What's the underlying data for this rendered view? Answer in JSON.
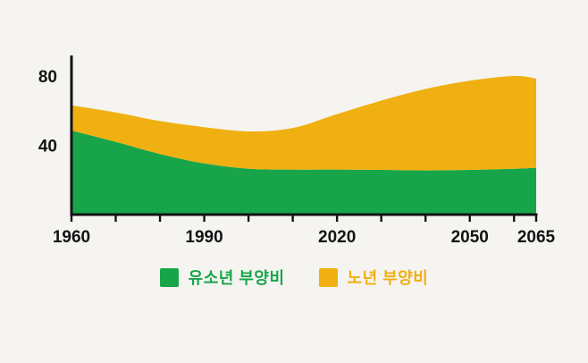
{
  "figure": {
    "background": "#f5f4f1"
  },
  "chart_data": {
    "type": "area",
    "stacked": true,
    "title": "",
    "xlabel": "",
    "ylabel": "",
    "x": [
      1960,
      1970,
      1980,
      1990,
      2000,
      2010,
      2020,
      2030,
      2040,
      2050,
      2060,
      2065
    ],
    "series": [
      {
        "name": "유소년 부양비",
        "color": "#18a54a",
        "values": [
          48.5,
          42,
          35,
          29.5,
          26.5,
          26,
          26,
          25.8,
          25.5,
          25.8,
          26.5,
          27
        ]
      },
      {
        "name": "노년 부양비",
        "color": "#f0b012",
        "values": [
          14.5,
          17,
          19,
          21,
          21.5,
          24,
          32,
          40,
          47,
          51.5,
          53.5,
          51.5
        ]
      }
    ],
    "xticks": [
      1960,
      1970,
      1980,
      1990,
      2000,
      2010,
      2020,
      2030,
      2040,
      2050,
      2060,
      2065
    ],
    "xtick_labels": [
      1960,
      1990,
      2020,
      2050,
      2065
    ],
    "yticks": [
      40,
      80
    ],
    "xlim": [
      1960,
      2065
    ],
    "ylim": [
      0,
      94
    ],
    "grid": false,
    "axis_color": "#131313",
    "legend_position": "bottom"
  },
  "legend": {
    "items": [
      {
        "label": "유소년 부양비",
        "color": "#18a54a"
      },
      {
        "label": "노년 부양비",
        "color": "#f0b012"
      }
    ]
  }
}
